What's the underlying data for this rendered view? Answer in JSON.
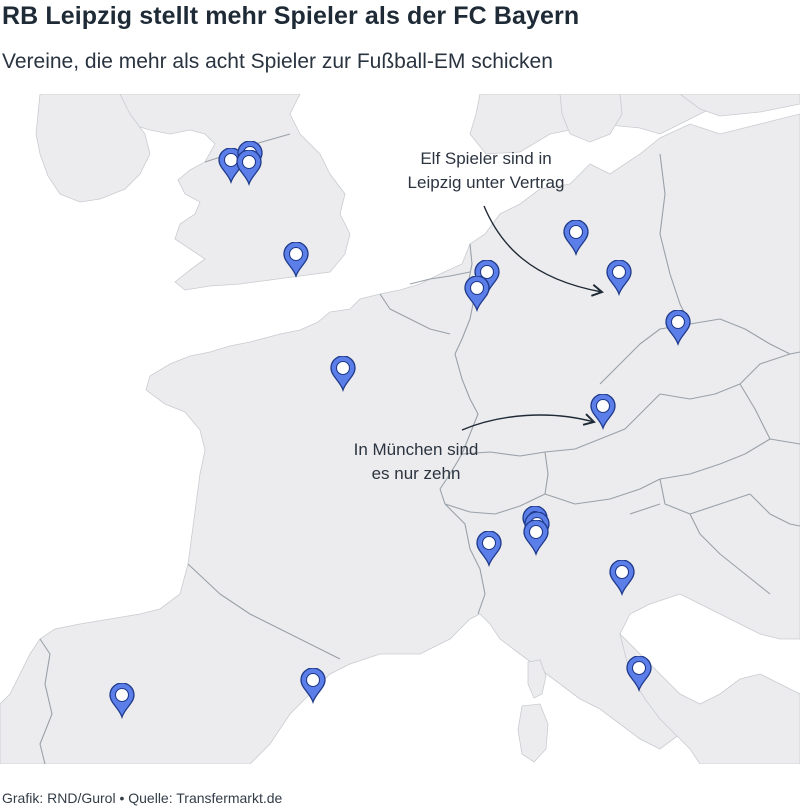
{
  "title": "RB Leipzig stellt mehr Spieler als der FC Bayern",
  "subtitle": "Vereine, die mehr als acht Spieler zur Fußball-EM schicken",
  "credit": "Grafik: RND/Gurol • Quelle: Transfermarkt.de",
  "annotations": {
    "leipzig_line1": "Elf Spieler sind in",
    "leipzig_line2": "Leipzig unter Vertrag",
    "muenchen_line1": "In München sind",
    "muenchen_line2": "es nur zehn"
  },
  "colors": {
    "land": "#ececee",
    "sea": "#ffffff",
    "border": "#9aa1a8",
    "pin_fill": "#5b7ee8",
    "pin_stroke": "#1f3a8a",
    "pin_hole": "#ffffff"
  },
  "marker_icon": "map-pin-icon",
  "clubs_marked": 19
}
